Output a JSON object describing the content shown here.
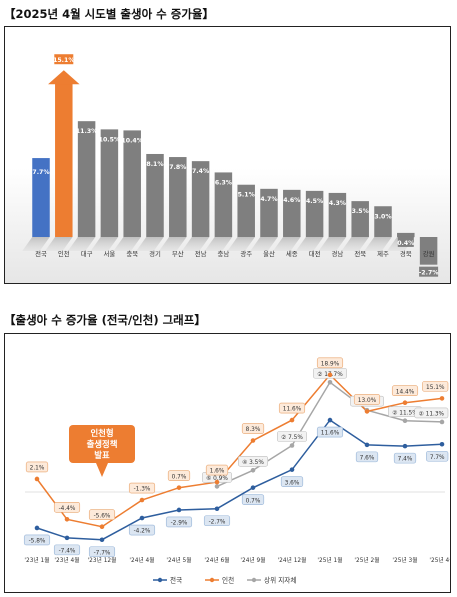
{
  "titles": {
    "top": "【2025년 4월 시도별 출생아 수 증가율】",
    "bottom": "【출생아 수 증가율 (전국/인천) 그래프】"
  },
  "colors": {
    "national": "#4472c4",
    "incheon": "#ed7d31",
    "others": "#7f7f7f",
    "line_national": "#2e5e9e",
    "line_incheon": "#ed7d31",
    "line_upper": "#a6a6a6"
  },
  "chart_data": [
    {
      "type": "bar",
      "title": "",
      "categories": [
        "전국",
        "인천",
        "대구",
        "서울",
        "충북",
        "경기",
        "부산",
        "전남",
        "충남",
        "광주",
        "울산",
        "세종",
        "대전",
        "경남",
        "전북",
        "제주",
        "경북",
        "강원"
      ],
      "values": [
        7.7,
        15.1,
        11.3,
        10.5,
        10.4,
        8.1,
        7.8,
        7.4,
        6.3,
        5.1,
        4.7,
        4.6,
        4.5,
        4.3,
        3.5,
        3.0,
        0.4,
        -2.7
      ],
      "value_labels": [
        "7.7%",
        "15.1%",
        "11.3%",
        "10.5%",
        "10.4%",
        "8.1%",
        "7.8%",
        "7.4%",
        "6.3%",
        "5.1%",
        "4.7%",
        "4.6%",
        "4.5%",
        "4.3%",
        "3.5%",
        "3.0%",
        "0.4%",
        "-2.7%"
      ],
      "ylim": [
        -4,
        16
      ],
      "highlight": {
        "전국": "national",
        "인천": "incheon"
      },
      "grid": false
    },
    {
      "type": "line",
      "title": "",
      "x": [
        "'23년 1월",
        "'23년 4월",
        "'23년 12월",
        "'24년 4월",
        "'24년 5월",
        "'24년 6월",
        "'24년 9월",
        "'24년 12월",
        "'25년 1월",
        "'25년 2월",
        "'25년 3월",
        "'25년 4월"
      ],
      "ylim": [
        -10,
        20
      ],
      "series": [
        {
          "name": "전국",
          "values": [
            -5.8,
            -7.4,
            -7.7,
            -4.2,
            -2.9,
            -2.7,
            0.7,
            3.6,
            11.6,
            7.6,
            7.4,
            7.7
          ],
          "labels": [
            "-5.8%",
            "-7.4%",
            "-7.7%",
            "-4.2%",
            "-2.9%",
            "-2.7%",
            "0.7%",
            "3.6%",
            "11.6%",
            "7.6%",
            "7.4%",
            "7.7%"
          ]
        },
        {
          "name": "인천",
          "values": [
            2.1,
            -4.4,
            -5.6,
            -1.3,
            0.7,
            1.6,
            8.3,
            11.6,
            18.9,
            13.0,
            14.4,
            15.1
          ],
          "labels": [
            "2.1%",
            "-4.4%",
            "-5.6%",
            "-1.3%",
            "0.7%",
            "1.6%",
            "8.3%",
            "11.6%",
            "18.9%",
            "13.0%",
            "14.4%",
            "15.1%"
          ]
        },
        {
          "name": "상위 지자체",
          "values": [
            null,
            null,
            null,
            null,
            null,
            0.9,
            3.5,
            7.5,
            17.7,
            13.2,
            11.5,
            11.3
          ],
          "labels": [
            null,
            null,
            null,
            null,
            null,
            "0.9%",
            "3.5%",
            "7.5%",
            "17.7%",
            "13.2%",
            "11.5%",
            "11.3%"
          ],
          "rank_marks": [
            null,
            null,
            null,
            null,
            null,
            "⑥",
            "④",
            "②",
            "②",
            "①",
            "②",
            "②"
          ]
        }
      ],
      "callout": {
        "lines": [
          "인천형",
          "출생정책",
          "발표"
        ],
        "at": "'23년 12월"
      },
      "legend": {
        "placement": "bottom",
        "entries": [
          "전국",
          "인천",
          "상위 지자체"
        ]
      },
      "grid": false
    }
  ]
}
